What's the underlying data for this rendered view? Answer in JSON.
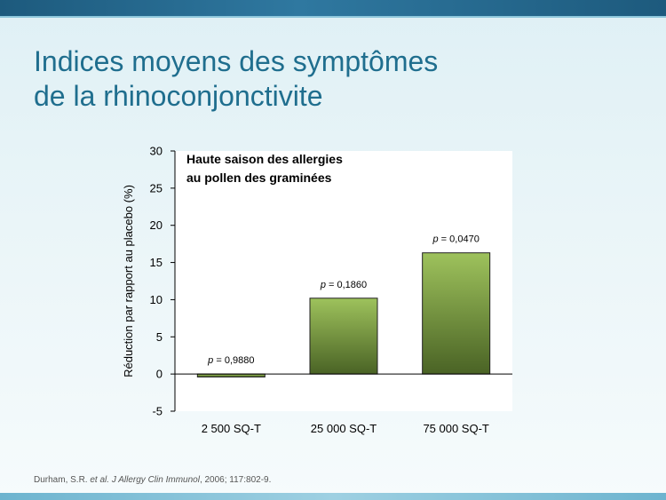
{
  "slide": {
    "title_line1": "Indices moyens des symptômes",
    "title_line2": "de la rhinoconjonctivite",
    "footer_author": "Durham, S.R.",
    "footer_etal": "et al.",
    "footer_journal": "J Allergy Clin Immunol",
    "footer_rest": ", 2006; 117:802-9."
  },
  "colors": {
    "title": "#1f6e8e",
    "bar_top": "#9ec25c",
    "bar_bottom": "#4a6325"
  },
  "chart_data": {
    "type": "bar",
    "annotation_title": [
      "Haute saison des allergies",
      "au pollen des graminées"
    ],
    "ylabel": "Réduction par rapport au placebo (%)",
    "xlabel": "",
    "ylim": [
      -5,
      30
    ],
    "yticks": [
      -5,
      0,
      5,
      10,
      15,
      20,
      25,
      30
    ],
    "categories": [
      "2 500 SQ-T",
      "25 000 SQ-T",
      "75 000 SQ-T"
    ],
    "values": [
      -0.4,
      10.2,
      16.3
    ],
    "p_labels": [
      {
        "prefix": "p",
        "text": " = 0,9880"
      },
      {
        "prefix": "p",
        "text": " = 0,1860"
      },
      {
        "prefix": "p",
        "text": " = 0,0470"
      }
    ],
    "grid": false,
    "legend": "none"
  }
}
